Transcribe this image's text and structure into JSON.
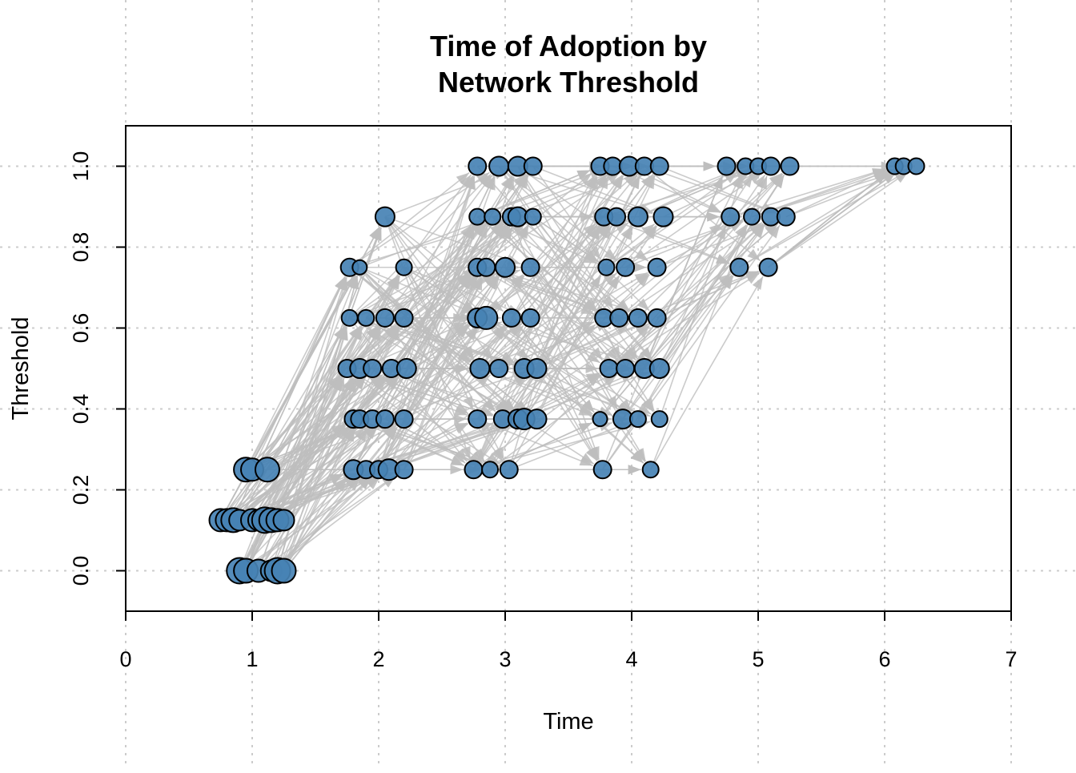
{
  "chart_data": {
    "type": "scatter",
    "title": [
      "Time of Adoption by",
      "Network Threshold"
    ],
    "xlabel": "Time",
    "ylabel": "Threshold",
    "xlim": [
      0,
      7
    ],
    "ylim": [
      -0.1,
      1.1
    ],
    "x_ticks": [
      "0",
      "1",
      "2",
      "3",
      "4",
      "5",
      "6",
      "7"
    ],
    "y_ticks": [
      "0.0",
      "0.2",
      "0.4",
      "0.6",
      "0.8",
      "1.0"
    ],
    "grid": true,
    "node_color": "#4682B4",
    "node_border_color": "#000000",
    "edge_color": "#BEBEBE",
    "points": [
      {
        "x": 0.9,
        "y": 0.0,
        "r": 16
      },
      {
        "x": 0.95,
        "y": 0.0,
        "r": 15
      },
      {
        "x": 1.05,
        "y": 0.0,
        "r": 14
      },
      {
        "x": 1.15,
        "y": 0.0,
        "r": 13
      },
      {
        "x": 1.2,
        "y": 0.0,
        "r": 16
      },
      {
        "x": 1.25,
        "y": 0.0,
        "r": 15
      },
      {
        "x": 0.75,
        "y": 0.125,
        "r": 14
      },
      {
        "x": 0.8,
        "y": 0.125,
        "r": 14
      },
      {
        "x": 0.85,
        "y": 0.125,
        "r": 15
      },
      {
        "x": 0.9,
        "y": 0.125,
        "r": 13
      },
      {
        "x": 1.0,
        "y": 0.125,
        "r": 14
      },
      {
        "x": 1.05,
        "y": 0.125,
        "r": 13
      },
      {
        "x": 1.1,
        "y": 0.125,
        "r": 16
      },
      {
        "x": 1.15,
        "y": 0.125,
        "r": 15
      },
      {
        "x": 1.2,
        "y": 0.125,
        "r": 14
      },
      {
        "x": 1.25,
        "y": 0.125,
        "r": 13
      },
      {
        "x": 0.95,
        "y": 0.25,
        "r": 15
      },
      {
        "x": 1.0,
        "y": 0.25,
        "r": 14
      },
      {
        "x": 1.12,
        "y": 0.25,
        "r": 15
      },
      {
        "x": 1.8,
        "y": 0.25,
        "r": 12
      },
      {
        "x": 1.9,
        "y": 0.25,
        "r": 11
      },
      {
        "x": 2.0,
        "y": 0.25,
        "r": 11
      },
      {
        "x": 2.08,
        "y": 0.25,
        "r": 13
      },
      {
        "x": 2.2,
        "y": 0.25,
        "r": 11
      },
      {
        "x": 2.75,
        "y": 0.25,
        "r": 11
      },
      {
        "x": 2.88,
        "y": 0.25,
        "r": 10
      },
      {
        "x": 3.03,
        "y": 0.25,
        "r": 11
      },
      {
        "x": 3.77,
        "y": 0.25,
        "r": 11
      },
      {
        "x": 4.15,
        "y": 0.25,
        "r": 10
      },
      {
        "x": 1.8,
        "y": 0.375,
        "r": 11
      },
      {
        "x": 1.85,
        "y": 0.375,
        "r": 11
      },
      {
        "x": 1.95,
        "y": 0.375,
        "r": 11
      },
      {
        "x": 2.05,
        "y": 0.375,
        "r": 11
      },
      {
        "x": 2.2,
        "y": 0.375,
        "r": 11
      },
      {
        "x": 2.78,
        "y": 0.375,
        "r": 11
      },
      {
        "x": 2.98,
        "y": 0.375,
        "r": 11
      },
      {
        "x": 3.1,
        "y": 0.375,
        "r": 12
      },
      {
        "x": 3.15,
        "y": 0.375,
        "r": 13
      },
      {
        "x": 3.25,
        "y": 0.375,
        "r": 12
      },
      {
        "x": 3.75,
        "y": 0.375,
        "r": 9
      },
      {
        "x": 3.93,
        "y": 0.375,
        "r": 12
      },
      {
        "x": 4.05,
        "y": 0.375,
        "r": 10
      },
      {
        "x": 4.22,
        "y": 0.375,
        "r": 10
      },
      {
        "x": 1.75,
        "y": 0.5,
        "r": 11
      },
      {
        "x": 1.85,
        "y": 0.5,
        "r": 12
      },
      {
        "x": 1.95,
        "y": 0.5,
        "r": 11
      },
      {
        "x": 2.1,
        "y": 0.5,
        "r": 11
      },
      {
        "x": 2.22,
        "y": 0.5,
        "r": 12
      },
      {
        "x": 2.8,
        "y": 0.5,
        "r": 12
      },
      {
        "x": 2.95,
        "y": 0.5,
        "r": 11
      },
      {
        "x": 3.15,
        "y": 0.5,
        "r": 12
      },
      {
        "x": 3.25,
        "y": 0.5,
        "r": 12
      },
      {
        "x": 3.82,
        "y": 0.5,
        "r": 11
      },
      {
        "x": 3.95,
        "y": 0.5,
        "r": 11
      },
      {
        "x": 4.1,
        "y": 0.5,
        "r": 12
      },
      {
        "x": 4.22,
        "y": 0.5,
        "r": 12
      },
      {
        "x": 1.77,
        "y": 0.625,
        "r": 10
      },
      {
        "x": 1.9,
        "y": 0.625,
        "r": 10
      },
      {
        "x": 2.05,
        "y": 0.625,
        "r": 11
      },
      {
        "x": 2.2,
        "y": 0.625,
        "r": 11
      },
      {
        "x": 2.78,
        "y": 0.625,
        "r": 12
      },
      {
        "x": 2.85,
        "y": 0.625,
        "r": 14
      },
      {
        "x": 3.05,
        "y": 0.625,
        "r": 11
      },
      {
        "x": 3.2,
        "y": 0.625,
        "r": 11
      },
      {
        "x": 3.78,
        "y": 0.625,
        "r": 11
      },
      {
        "x": 3.9,
        "y": 0.625,
        "r": 11
      },
      {
        "x": 4.05,
        "y": 0.625,
        "r": 11
      },
      {
        "x": 4.2,
        "y": 0.625,
        "r": 11
      },
      {
        "x": 1.77,
        "y": 0.75,
        "r": 11
      },
      {
        "x": 1.85,
        "y": 0.75,
        "r": 9
      },
      {
        "x": 2.2,
        "y": 0.75,
        "r": 10
      },
      {
        "x": 2.78,
        "y": 0.75,
        "r": 11
      },
      {
        "x": 2.85,
        "y": 0.75,
        "r": 11
      },
      {
        "x": 3.0,
        "y": 0.75,
        "r": 12
      },
      {
        "x": 3.2,
        "y": 0.75,
        "r": 11
      },
      {
        "x": 3.8,
        "y": 0.75,
        "r": 10
      },
      {
        "x": 3.95,
        "y": 0.75,
        "r": 11
      },
      {
        "x": 4.2,
        "y": 0.75,
        "r": 11
      },
      {
        "x": 4.85,
        "y": 0.75,
        "r": 11
      },
      {
        "x": 5.08,
        "y": 0.75,
        "r": 11
      },
      {
        "x": 2.05,
        "y": 0.875,
        "r": 12
      },
      {
        "x": 2.78,
        "y": 0.875,
        "r": 10
      },
      {
        "x": 2.9,
        "y": 0.875,
        "r": 10
      },
      {
        "x": 3.05,
        "y": 0.875,
        "r": 11
      },
      {
        "x": 3.1,
        "y": 0.875,
        "r": 12
      },
      {
        "x": 3.22,
        "y": 0.875,
        "r": 10
      },
      {
        "x": 3.78,
        "y": 0.875,
        "r": 11
      },
      {
        "x": 3.88,
        "y": 0.875,
        "r": 11
      },
      {
        "x": 4.05,
        "y": 0.875,
        "r": 12
      },
      {
        "x": 4.25,
        "y": 0.875,
        "r": 12
      },
      {
        "x": 4.78,
        "y": 0.875,
        "r": 11
      },
      {
        "x": 4.95,
        "y": 0.875,
        "r": 10
      },
      {
        "x": 5.1,
        "y": 0.875,
        "r": 11
      },
      {
        "x": 5.22,
        "y": 0.875,
        "r": 11
      },
      {
        "x": 2.78,
        "y": 1.0,
        "r": 11
      },
      {
        "x": 2.95,
        "y": 1.0,
        "r": 12
      },
      {
        "x": 3.1,
        "y": 1.0,
        "r": 12
      },
      {
        "x": 3.22,
        "y": 1.0,
        "r": 11
      },
      {
        "x": 3.75,
        "y": 1.0,
        "r": 11
      },
      {
        "x": 3.85,
        "y": 1.0,
        "r": 11
      },
      {
        "x": 3.98,
        "y": 1.0,
        "r": 12
      },
      {
        "x": 4.1,
        "y": 1.0,
        "r": 11
      },
      {
        "x": 4.22,
        "y": 1.0,
        "r": 11
      },
      {
        "x": 4.75,
        "y": 1.0,
        "r": 11
      },
      {
        "x": 4.9,
        "y": 1.0,
        "r": 10
      },
      {
        "x": 5.0,
        "y": 1.0,
        "r": 10
      },
      {
        "x": 5.1,
        "y": 1.0,
        "r": 11
      },
      {
        "x": 5.25,
        "y": 1.0,
        "r": 11
      },
      {
        "x": 6.08,
        "y": 1.0,
        "r": 10
      },
      {
        "x": 6.15,
        "y": 1.0,
        "r": 10
      },
      {
        "x": 6.25,
        "y": 1.0,
        "r": 10
      }
    ]
  }
}
